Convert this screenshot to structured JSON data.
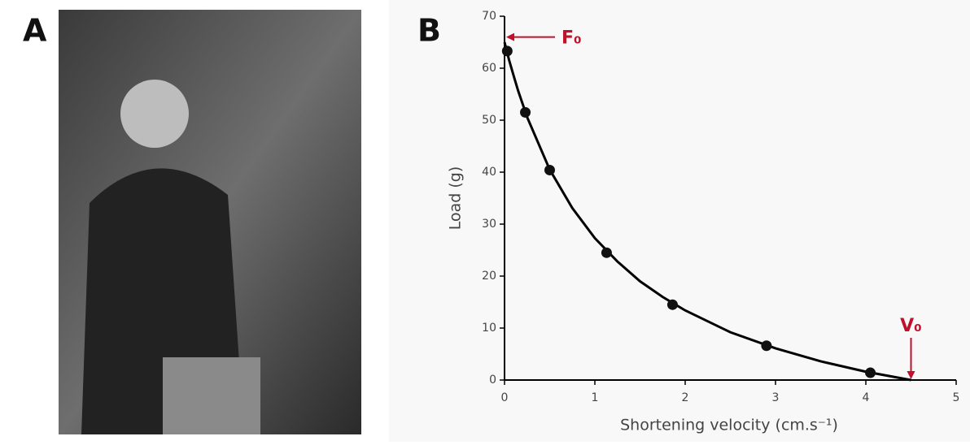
{
  "panel_labels": [
    "A",
    "B"
  ],
  "chart_data": {
    "type": "scatter",
    "xlabel": "Shortening velocity (cm.s⁻¹)",
    "ylabel": "Load (g)",
    "x": [
      0.03,
      0.23,
      0.5,
      1.13,
      1.86,
      2.9,
      4.05
    ],
    "values": [
      63.3,
      51.5,
      40.4,
      24.5,
      14.5,
      6.6,
      1.4
    ],
    "color": "#111111",
    "curve": {
      "x": [
        0,
        0.05,
        0.1,
        0.15,
        0.25,
        0.5,
        0.75,
        1,
        1.25,
        1.5,
        1.75,
        2,
        2.5,
        3,
        3.5,
        4,
        4.5
      ],
      "values": [
        65.0,
        61.6,
        58.6,
        55.7,
        50.6,
        40.5,
        33.1,
        27.3,
        22.8,
        19.0,
        16.0,
        13.4,
        9.2,
        6.1,
        3.6,
        1.6,
        0
      ],
      "color": "#000000"
    },
    "annotations": [
      {
        "text": "F₀",
        "x": 0,
        "y": 66,
        "color": "#c0102a"
      },
      {
        "text": "V₀",
        "x": 4.5,
        "y": 0,
        "color": "#c0102a"
      }
    ],
    "xlim": [
      0,
      5
    ],
    "xticks": [
      0,
      1,
      2,
      3,
      4,
      5
    ],
    "ylim": [
      0,
      70
    ],
    "yticks": [
      0,
      10,
      20,
      30,
      40,
      50,
      60,
      70
    ]
  }
}
